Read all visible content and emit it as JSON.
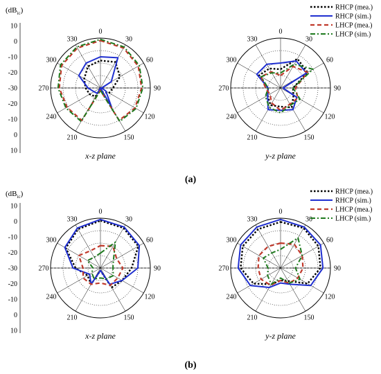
{
  "figure": {
    "unit_label": "(dB",
    "unit_sub": "ic",
    "unit_close": ")",
    "panel_labels": [
      "(a)",
      "(b)"
    ],
    "r_ticks": [
      "10",
      "0",
      "-10",
      "-20",
      "-30",
      "-20",
      "-10",
      "0",
      "10"
    ],
    "angle_labels": [
      "0",
      "30",
      "60",
      "90",
      "120",
      "150",
      "210",
      "240",
      "270",
      "300",
      "330"
    ]
  },
  "chart_data": [
    {
      "type": "polar-line",
      "id": "a-xz",
      "plane": "x-z plane",
      "panel": "(a)",
      "rlim": [
        -30,
        10
      ],
      "angle_ticks_deg": [
        0,
        30,
        60,
        90,
        120,
        150,
        210,
        240,
        270,
        300,
        330
      ],
      "series": [
        {
          "name": "RHCP (mea.)",
          "color": "#000000",
          "dash": "dotted",
          "angles": [
            0,
            30,
            60,
            90,
            120,
            150,
            180,
            210,
            240,
            270,
            300,
            330
          ],
          "values": [
            -8,
            -6,
            -12,
            -20,
            -22,
            -26,
            -30,
            -22,
            -20,
            -18,
            -15,
            -10
          ]
        },
        {
          "name": "RHCP (sim.)",
          "color": "#1f2fd0",
          "dash": "solid",
          "angles": [
            0,
            30,
            60,
            90,
            120,
            150,
            180,
            210,
            240,
            270,
            300,
            330
          ],
          "values": [
            -5,
            -2,
            -20,
            -29,
            -25,
            -12,
            -30,
            -25,
            -24,
            -20,
            -10,
            -7
          ]
        },
        {
          "name": "LHCP (mea.)",
          "color": "#c0392b",
          "dash": "dashed",
          "angles": [
            0,
            30,
            60,
            90,
            120,
            150,
            180,
            210,
            240,
            270,
            300,
            330
          ],
          "values": [
            8,
            7,
            5,
            3,
            2,
            0,
            -28,
            0,
            1,
            3,
            6,
            7
          ]
        },
        {
          "name": "LHCP (sim.)",
          "color": "#1e7a1e",
          "dash": "dashdot",
          "angles": [
            0,
            30,
            60,
            90,
            120,
            150,
            180,
            210,
            240,
            270,
            300,
            330
          ],
          "values": [
            9,
            8,
            6,
            4,
            3,
            1,
            -28,
            1,
            2,
            4,
            7,
            8
          ]
        }
      ]
    },
    {
      "type": "polar-line",
      "id": "a-yz",
      "plane": "y-z plane",
      "panel": "(a)",
      "rlim": [
        -30,
        10
      ],
      "angle_ticks_deg": [
        0,
        30,
        60,
        90,
        120,
        150,
        210,
        240,
        270,
        300,
        330
      ],
      "series": [
        {
          "name": "RHCP (mea.)",
          "color": "#000000",
          "dash": "dotted",
          "angles": [
            0,
            30,
            60,
            90,
            120,
            150,
            180,
            210,
            240,
            270,
            300,
            330
          ],
          "values": [
            -15,
            -3,
            -5,
            -20,
            -18,
            -12,
            -15,
            -14,
            -18,
            -20,
            -10,
            -12
          ]
        },
        {
          "name": "RHCP (sim.)",
          "color": "#1f2fd0",
          "dash": "solid",
          "angles": [
            0,
            30,
            60,
            90,
            120,
            150,
            180,
            210,
            240,
            270,
            300,
            330
          ],
          "values": [
            -10,
            -5,
            -6,
            -28,
            -15,
            -10,
            -12,
            -10,
            -18,
            -20,
            -8,
            -8
          ]
        },
        {
          "name": "LHCP (mea.)",
          "color": "#c0392b",
          "dash": "dashed",
          "angles": [
            0,
            30,
            60,
            90,
            120,
            150,
            180,
            210,
            240,
            270,
            300,
            330
          ],
          "values": [
            -20,
            -10,
            -5,
            -18,
            -14,
            -15,
            -12,
            -16,
            -20,
            -18,
            -12,
            -15
          ]
        },
        {
          "name": "LHCP (sim.)",
          "color": "#1e7a1e",
          "dash": "dashdot",
          "angles": [
            0,
            30,
            60,
            90,
            120,
            150,
            180,
            210,
            240,
            270,
            300,
            330
          ],
          "values": [
            -18,
            -8,
            0,
            -20,
            -12,
            -14,
            -10,
            -12,
            -16,
            -20,
            -12,
            -16
          ]
        }
      ]
    },
    {
      "type": "polar-line",
      "id": "b-xz",
      "plane": "x-z plane",
      "panel": "(b)",
      "rlim": [
        -30,
        10
      ],
      "angle_ticks_deg": [
        0,
        30,
        60,
        90,
        120,
        150,
        210,
        240,
        270,
        300,
        330
      ],
      "series": [
        {
          "name": "RHCP (mea.)",
          "color": "#000000",
          "dash": "dotted",
          "angles": [
            0,
            30,
            60,
            90,
            120,
            150,
            180,
            210,
            240,
            270,
            300,
            330
          ],
          "values": [
            8,
            7,
            5,
            -5,
            -10,
            -12,
            -28,
            -15,
            -18,
            -10,
            2,
            6
          ]
        },
        {
          "name": "RHCP (sim.)",
          "color": "#1f2fd0",
          "dash": "solid",
          "angles": [
            0,
            30,
            60,
            90,
            120,
            150,
            180,
            210,
            240,
            270,
            300,
            330
          ],
          "values": [
            9,
            8,
            6,
            0,
            -10,
            -15,
            -28,
            -15,
            -20,
            -8,
            3,
            7
          ]
        },
        {
          "name": "LHCP (mea.)",
          "color": "#c0392b",
          "dash": "dashed",
          "angles": [
            0,
            30,
            60,
            90,
            120,
            150,
            180,
            210,
            240,
            270,
            300,
            330
          ],
          "values": [
            -12,
            -10,
            -15,
            -12,
            -14,
            -14,
            -18,
            -15,
            -14,
            -16,
            -10,
            -14
          ]
        },
        {
          "name": "LHCP (sim.)",
          "color": "#1e7a1e",
          "dash": "dashdot",
          "angles": [
            0,
            30,
            60,
            90,
            120,
            150,
            180,
            210,
            240,
            270,
            300,
            330
          ],
          "values": [
            -18,
            -6,
            -18,
            -20,
            -18,
            -20,
            -22,
            -20,
            -22,
            -24,
            -18,
            -20
          ]
        }
      ]
    },
    {
      "type": "polar-line",
      "id": "b-yz",
      "plane": "y-z plane",
      "panel": "(b)",
      "rlim": [
        -30,
        10
      ],
      "angle_ticks_deg": [
        0,
        30,
        60,
        90,
        120,
        150,
        210,
        240,
        270,
        300,
        330
      ],
      "series": [
        {
          "name": "RHCP (mea.)",
          "color": "#000000",
          "dash": "dotted",
          "angles": [
            0,
            30,
            60,
            90,
            120,
            150,
            180,
            210,
            240,
            270,
            300,
            330
          ],
          "values": [
            7,
            7,
            5,
            2,
            -5,
            -18,
            -20,
            -15,
            -5,
            2,
            5,
            6
          ]
        },
        {
          "name": "RHCP (sim.)",
          "color": "#1f2fd0",
          "dash": "solid",
          "angles": [
            0,
            30,
            60,
            90,
            120,
            150,
            180,
            210,
            240,
            270,
            300,
            330
          ],
          "values": [
            9,
            8,
            7,
            4,
            -2,
            -15,
            -18,
            -12,
            -2,
            4,
            7,
            8
          ]
        },
        {
          "name": "LHCP (mea.)",
          "color": "#c0392b",
          "dash": "dashed",
          "angles": [
            0,
            30,
            60,
            90,
            120,
            150,
            180,
            210,
            240,
            270,
            300,
            330
          ],
          "values": [
            -10,
            -8,
            -10,
            -12,
            -14,
            -16,
            -20,
            -14,
            -12,
            -12,
            -10,
            -10
          ]
        },
        {
          "name": "LHCP (sim.)",
          "color": "#1e7a1e",
          "dash": "dashdot",
          "angles": [
            0,
            30,
            60,
            90,
            120,
            150,
            180,
            210,
            240,
            270,
            300,
            330
          ],
          "values": [
            -15,
            -2,
            -10,
            -18,
            -12,
            -16,
            -22,
            -15,
            -18,
            -20,
            -14,
            -16
          ]
        }
      ]
    }
  ]
}
